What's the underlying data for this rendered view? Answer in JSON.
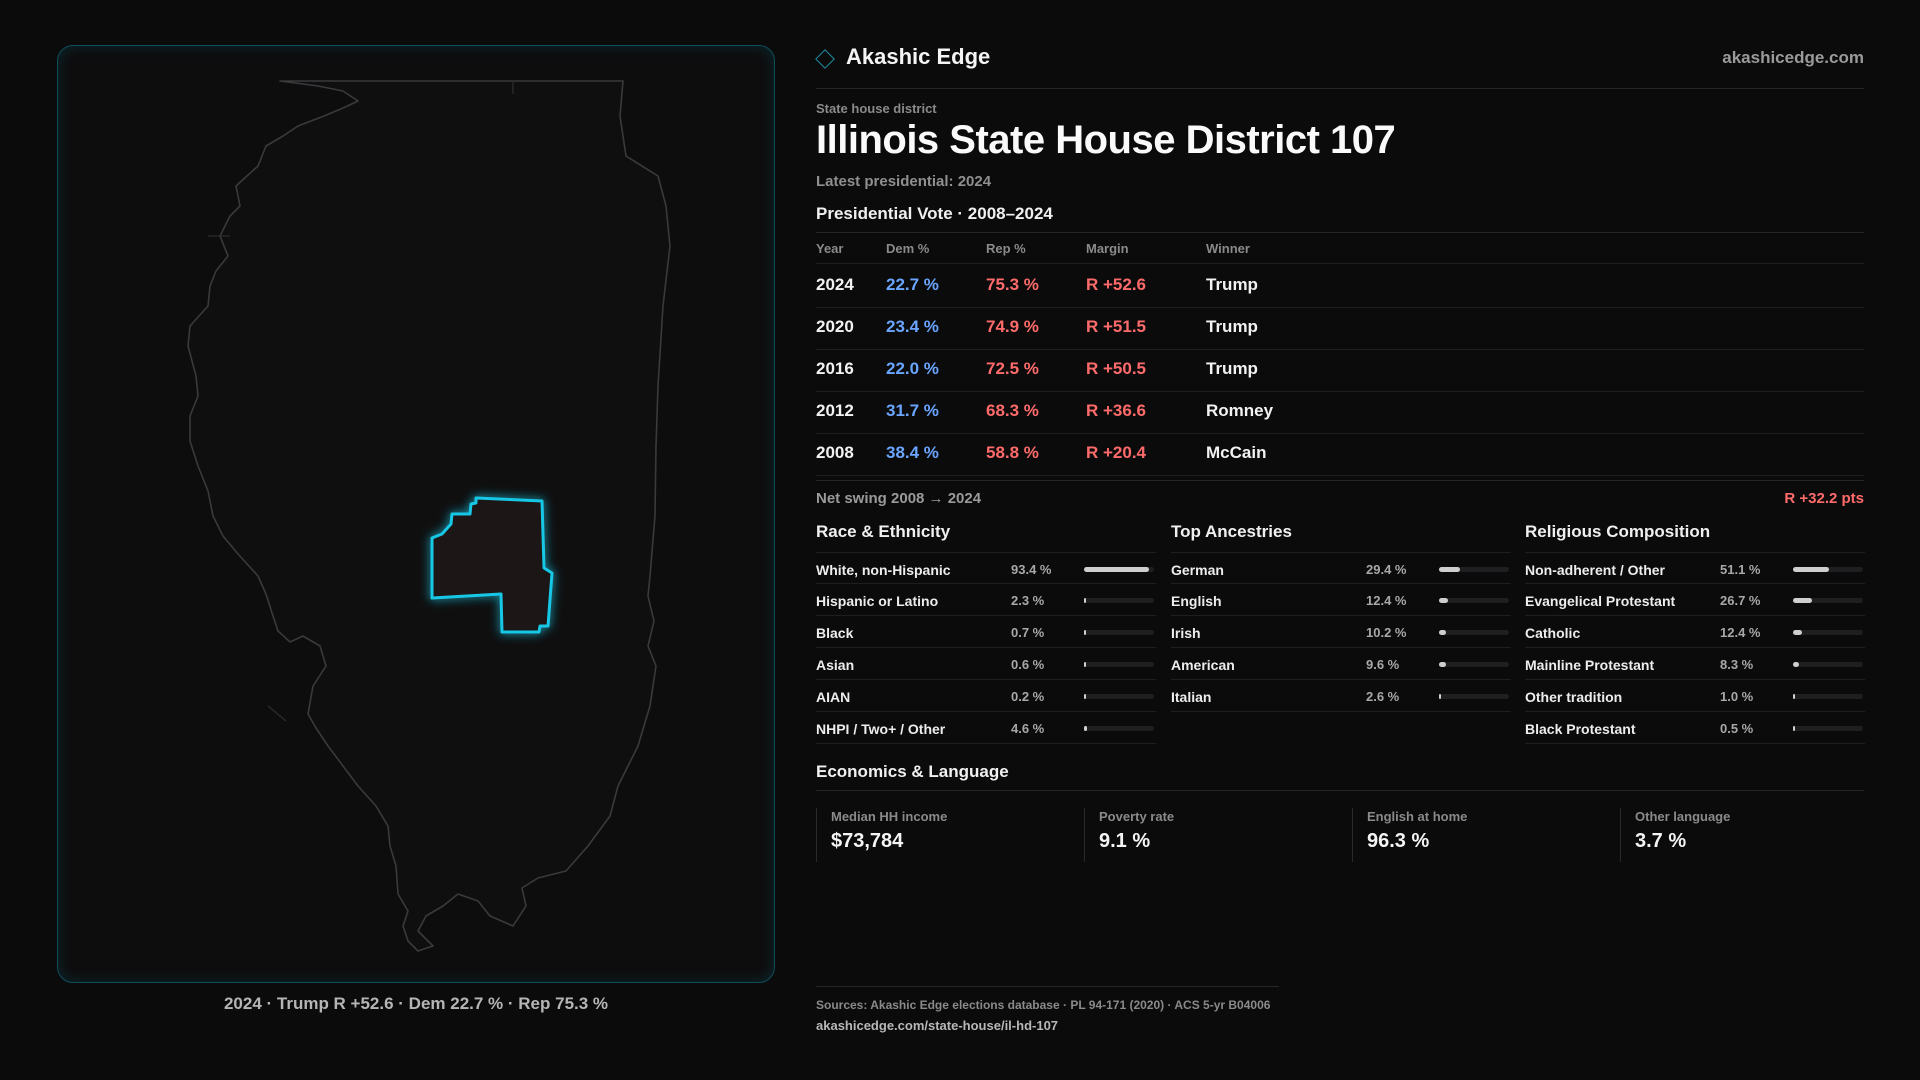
{
  "brand": {
    "name": "Akashic Edge",
    "url": "akashicedge.com",
    "icon": "diamond-outline-icon"
  },
  "header": {
    "kicker": "State house district",
    "title": "Illinois State House District 107",
    "subtitle": "Latest presidential: 2024"
  },
  "map": {
    "caption": "2024 · Trump R +52.6 · Dem 22.7 % · Rep 75.3 %",
    "highlight_color": "#19c8e6"
  },
  "presidential": {
    "heading": "Presidential Vote · 2008–2024",
    "columns": [
      "Year",
      "Dem %",
      "Rep %",
      "Margin",
      "Winner"
    ],
    "rows": [
      {
        "year": "2024",
        "dem": "22.7 %",
        "rep": "75.3 %",
        "margin": "R +52.6",
        "winner": "Trump"
      },
      {
        "year": "2020",
        "dem": "23.4 %",
        "rep": "74.9 %",
        "margin": "R +51.5",
        "winner": "Trump"
      },
      {
        "year": "2016",
        "dem": "22.0 %",
        "rep": "72.5 %",
        "margin": "R +50.5",
        "winner": "Trump"
      },
      {
        "year": "2012",
        "dem": "31.7 %",
        "rep": "68.3 %",
        "margin": "R +36.6",
        "winner": "Romney"
      },
      {
        "year": "2008",
        "dem": "38.4 %",
        "rep": "58.8 %",
        "margin": "R +20.4",
        "winner": "McCain"
      }
    ],
    "swing_label": "Net swing 2008 → 2024",
    "swing_value": "R +32.2 pts"
  },
  "race": {
    "heading": "Race & Ethnicity",
    "items": [
      {
        "label": "White, non-Hispanic",
        "value": "93.4 %",
        "pct": 93.4
      },
      {
        "label": "Hispanic or Latino",
        "value": "2.3 %",
        "pct": 2.3
      },
      {
        "label": "Black",
        "value": "0.7 %",
        "pct": 0.7
      },
      {
        "label": "Asian",
        "value": "0.6 %",
        "pct": 0.6
      },
      {
        "label": "AIAN",
        "value": "0.2 %",
        "pct": 0.2
      },
      {
        "label": "NHPI / Two+ / Other",
        "value": "4.6 %",
        "pct": 4.6
      }
    ]
  },
  "ancestry": {
    "heading": "Top Ancestries",
    "items": [
      {
        "label": "German",
        "value": "29.4 %",
        "pct": 29.4
      },
      {
        "label": "English",
        "value": "12.4 %",
        "pct": 12.4
      },
      {
        "label": "Irish",
        "value": "10.2 %",
        "pct": 10.2
      },
      {
        "label": "American",
        "value": "9.6 %",
        "pct": 9.6
      },
      {
        "label": "Italian",
        "value": "2.6 %",
        "pct": 2.6
      }
    ]
  },
  "religion": {
    "heading": "Religious Composition",
    "items": [
      {
        "label": "Non-adherent / Other",
        "value": "51.1 %",
        "pct": 51.1
      },
      {
        "label": "Evangelical Protestant",
        "value": "26.7 %",
        "pct": 26.7
      },
      {
        "label": "Catholic",
        "value": "12.4 %",
        "pct": 12.4
      },
      {
        "label": "Mainline Protestant",
        "value": "8.3 %",
        "pct": 8.3
      },
      {
        "label": "Other tradition",
        "value": "1.0 %",
        "pct": 1.0
      },
      {
        "label": "Black Protestant",
        "value": "0.5 %",
        "pct": 0.5
      }
    ]
  },
  "economics": {
    "heading": "Economics & Language",
    "items": [
      {
        "label": "Median HH income",
        "value": "$73,784"
      },
      {
        "label": "Poverty rate",
        "value": "9.1 %"
      },
      {
        "label": "English at home",
        "value": "96.3 %"
      },
      {
        "label": "Other language",
        "value": "3.7 %"
      }
    ]
  },
  "footer": {
    "sources": "Sources: Akashic Edge elections database · PL 94-171 (2020) · ACS 5-yr B04006",
    "url": "akashicedge.com/state-house/il-hd-107"
  }
}
